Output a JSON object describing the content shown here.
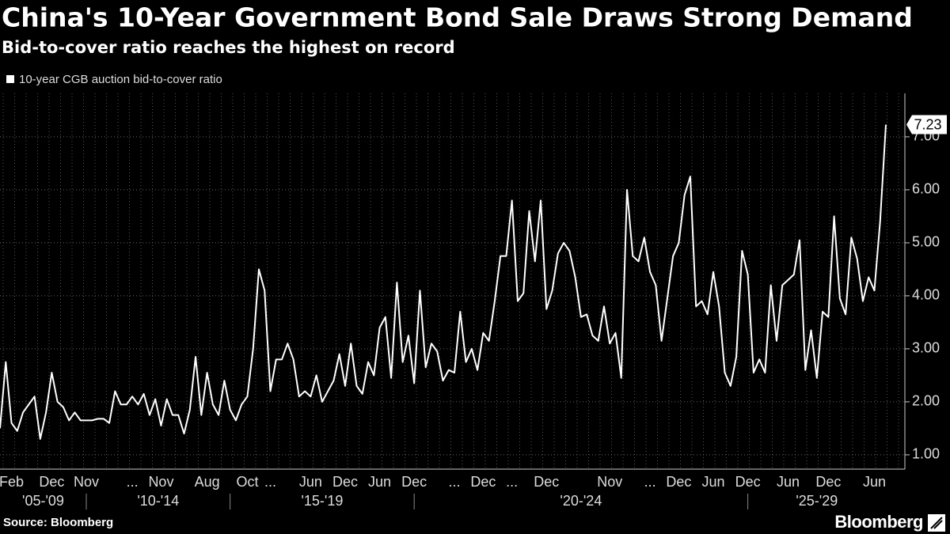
{
  "chart_data": {
    "type": "line",
    "title": "China's 10-Year Government Bond Sale Draws Strong Demand",
    "subtitle": "Bid-to-cover ratio reaches the highest on record",
    "source": "Source: Bloomberg",
    "brand": "Bloomberg",
    "categories": [
      null,
      null,
      "Feb",
      null,
      null,
      null,
      null,
      null,
      null,
      "Dec",
      null,
      null,
      null,
      null,
      null,
      "Nov",
      null,
      null,
      null,
      null,
      null,
      null,
      null,
      "...",
      null,
      null,
      null,
      null,
      "Nov",
      null,
      null,
      null,
      null,
      null,
      null,
      null,
      "Aug",
      null,
      null,
      null,
      null,
      null,
      null,
      "Oct",
      null,
      null,
      null,
      "...",
      null,
      null,
      null,
      null,
      null,
      null,
      "Jun",
      null,
      null,
      null,
      null,
      null,
      "Dec",
      null,
      null,
      null,
      null,
      null,
      "Jun",
      null,
      null,
      null,
      null,
      null,
      "Dec",
      null,
      null,
      null,
      null,
      null,
      null,
      "...",
      null,
      null,
      null,
      null,
      "Dec",
      null,
      null,
      null,
      null,
      "...",
      null,
      null,
      null,
      null,
      null,
      "Dec",
      null,
      null,
      null,
      null,
      null,
      null,
      null,
      null,
      null,
      null,
      "Nov",
      null,
      null,
      null,
      null,
      null,
      null,
      "...",
      null,
      null,
      null,
      null,
      "Dec",
      null,
      null,
      null,
      null,
      null,
      "Jun",
      null,
      null,
      null,
      null,
      null,
      "Dec",
      null,
      null,
      null,
      null,
      null,
      null,
      "Jun",
      null,
      null,
      null,
      null,
      null,
      null,
      "Dec",
      null,
      null,
      null,
      null,
      null,
      null,
      null,
      "Jun",
      null,
      null
    ],
    "x_groups": [
      {
        "label": "'05-'09",
        "start": 0,
        "end": 15
      },
      {
        "label": "'10-'14",
        "start": 15,
        "end": 40
      },
      {
        "label": "'15-'19",
        "start": 40,
        "end": 72
      },
      {
        "label": "'20-'24",
        "start": 72,
        "end": 130
      },
      {
        "label": "'25-'29",
        "start": 130,
        "end": 154
      }
    ],
    "series": [
      {
        "name": "10-year CGB auction bid-to-cover ratio",
        "color": "#ffffff",
        "values": [
          1.5,
          2.75,
          1.6,
          1.45,
          1.8,
          1.95,
          2.1,
          1.3,
          1.8,
          2.55,
          2.0,
          1.9,
          1.65,
          1.8,
          1.65,
          1.65,
          1.65,
          1.68,
          1.68,
          1.6,
          2.2,
          1.95,
          1.95,
          2.1,
          1.95,
          2.15,
          1.75,
          2.05,
          1.55,
          2.05,
          1.75,
          1.75,
          1.4,
          1.85,
          2.85,
          1.75,
          2.55,
          1.95,
          1.75,
          2.4,
          1.85,
          1.65,
          1.95,
          2.1,
          3.0,
          4.5,
          4.1,
          2.2,
          2.8,
          2.8,
          3.1,
          2.8,
          2.1,
          2.2,
          2.1,
          2.5,
          2.0,
          2.2,
          2.4,
          2.9,
          2.3,
          3.1,
          2.3,
          2.15,
          2.75,
          2.5,
          3.4,
          3.6,
          2.45,
          4.25,
          2.75,
          3.25,
          2.35,
          4.1,
          2.65,
          3.1,
          2.95,
          2.4,
          2.6,
          2.55,
          3.7,
          2.75,
          3.0,
          2.6,
          3.3,
          3.15,
          3.9,
          4.75,
          4.75,
          5.8,
          3.9,
          4.05,
          5.6,
          4.65,
          5.8,
          3.75,
          4.1,
          4.8,
          5.0,
          4.85,
          4.35,
          3.6,
          3.65,
          3.25,
          3.15,
          3.8,
          3.1,
          3.3,
          2.45,
          6.0,
          4.75,
          4.65,
          5.1,
          4.45,
          4.2,
          3.15,
          3.95,
          4.75,
          5.0,
          5.9,
          6.25,
          3.8,
          3.9,
          3.65,
          4.45,
          3.8,
          2.55,
          2.3,
          2.85,
          4.85,
          4.4,
          2.55,
          2.8,
          2.55,
          4.2,
          3.15,
          4.2,
          4.3,
          4.4,
          5.05,
          2.6,
          3.35,
          2.45,
          3.7,
          3.6,
          5.5,
          3.95,
          3.65,
          5.1,
          4.7,
          3.9,
          4.35,
          4.1,
          5.4,
          7.23
        ]
      }
    ],
    "ylim": [
      0.73,
      7.82
    ],
    "yticks": [
      {
        "value": 1,
        "label": "1.00"
      },
      {
        "value": 2,
        "label": "2.00"
      },
      {
        "value": 3,
        "label": "3.00"
      },
      {
        "value": 4,
        "label": "4.00"
      },
      {
        "value": 5,
        "label": "5.00"
      },
      {
        "value": 6,
        "label": "6.00"
      },
      {
        "value": 7,
        "label": "7.00"
      }
    ],
    "grid": true
  }
}
